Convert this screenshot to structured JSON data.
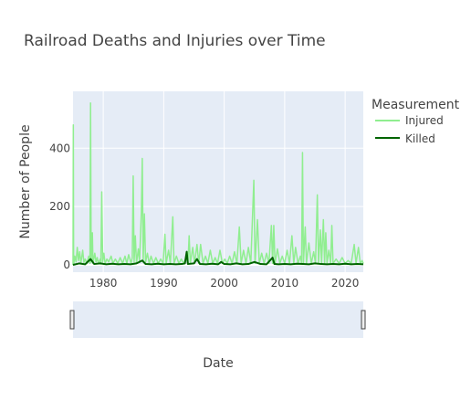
{
  "chart_data": {
    "type": "line",
    "title": "Railroad Deaths and Injuries over Time",
    "xlabel": "Date",
    "ylabel": "Number of People",
    "xlim": [
      1975.0,
      2023.0
    ],
    "ylim": [
      -25,
      595
    ],
    "x_ticks": [
      1980,
      1990,
      2000,
      2010,
      2020
    ],
    "y_ticks": [
      0,
      200,
      400
    ],
    "grid": true,
    "legend": {
      "title": "Measurement",
      "placement": "right"
    },
    "range_slider": true,
    "series": [
      {
        "name": "Injured",
        "color": "#90ee90",
        "points": [
          [
            1975.0,
            0
          ],
          [
            1975.05,
            480
          ],
          [
            1975.1,
            0
          ],
          [
            1975.3,
            30
          ],
          [
            1975.5,
            10
          ],
          [
            1975.7,
            60
          ],
          [
            1975.9,
            15
          ],
          [
            1976.1,
            45
          ],
          [
            1976.3,
            5
          ],
          [
            1976.6,
            50
          ],
          [
            1976.8,
            8
          ],
          [
            1977.0,
            20
          ],
          [
            1977.3,
            5
          ],
          [
            1977.6,
            30
          ],
          [
            1977.8,
            5
          ],
          [
            1977.9,
            555
          ],
          [
            1978.0,
            10
          ],
          [
            1978.2,
            110
          ],
          [
            1978.3,
            5
          ],
          [
            1978.6,
            40
          ],
          [
            1978.8,
            10
          ],
          [
            1979.0,
            25
          ],
          [
            1979.2,
            5
          ],
          [
            1979.5,
            20
          ],
          [
            1979.6,
            3
          ],
          [
            1979.75,
            250
          ],
          [
            1979.9,
            10
          ],
          [
            1980.1,
            40
          ],
          [
            1980.3,
            5
          ],
          [
            1980.6,
            20
          ],
          [
            1980.9,
            10
          ],
          [
            1981.3,
            30
          ],
          [
            1981.6,
            5
          ],
          [
            1982.0,
            20
          ],
          [
            1982.4,
            5
          ],
          [
            1982.8,
            25
          ],
          [
            1983.2,
            5
          ],
          [
            1983.6,
            30
          ],
          [
            1983.9,
            5
          ],
          [
            1984.2,
            35
          ],
          [
            1984.6,
            5
          ],
          [
            1984.8,
            25
          ],
          [
            1984.95,
            305
          ],
          [
            1985.1,
            10
          ],
          [
            1985.3,
            100
          ],
          [
            1985.5,
            5
          ],
          [
            1985.8,
            55
          ],
          [
            1986.0,
            10
          ],
          [
            1986.3,
            180
          ],
          [
            1986.45,
            365
          ],
          [
            1986.6,
            10
          ],
          [
            1986.8,
            175
          ],
          [
            1987.0,
            10
          ],
          [
            1987.3,
            40
          ],
          [
            1987.6,
            5
          ],
          [
            1987.9,
            30
          ],
          [
            1988.3,
            5
          ],
          [
            1988.7,
            25
          ],
          [
            1989.1,
            5
          ],
          [
            1989.5,
            20
          ],
          [
            1989.9,
            5
          ],
          [
            1990.2,
            105
          ],
          [
            1990.4,
            5
          ],
          [
            1990.8,
            50
          ],
          [
            1991.1,
            5
          ],
          [
            1991.5,
            165
          ],
          [
            1991.7,
            5
          ],
          [
            1992.1,
            30
          ],
          [
            1992.5,
            5
          ],
          [
            1992.9,
            20
          ],
          [
            1993.3,
            5
          ],
          [
            1993.7,
            25
          ],
          [
            1994.0,
            5
          ],
          [
            1994.2,
            100
          ],
          [
            1994.4,
            5
          ],
          [
            1994.8,
            60
          ],
          [
            1995.1,
            5
          ],
          [
            1995.5,
            70
          ],
          [
            1995.8,
            5
          ],
          [
            1996.1,
            70
          ],
          [
            1996.5,
            5
          ],
          [
            1996.9,
            30
          ],
          [
            1997.3,
            5
          ],
          [
            1997.7,
            50
          ],
          [
            1998.1,
            5
          ],
          [
            1998.5,
            25
          ],
          [
            1998.9,
            5
          ],
          [
            1999.3,
            50
          ],
          [
            1999.7,
            5
          ],
          [
            2000.1,
            20
          ],
          [
            2000.5,
            5
          ],
          [
            2000.9,
            30
          ],
          [
            2001.3,
            5
          ],
          [
            2001.7,
            45
          ],
          [
            2002.1,
            5
          ],
          [
            2002.5,
            130
          ],
          [
            2002.8,
            5
          ],
          [
            2003.2,
            50
          ],
          [
            2003.6,
            5
          ],
          [
            2004.0,
            60
          ],
          [
            2004.4,
            5
          ],
          [
            2004.9,
            290
          ],
          [
            2005.1,
            5
          ],
          [
            2005.5,
            155
          ],
          [
            2005.8,
            5
          ],
          [
            2006.2,
            40
          ],
          [
            2006.6,
            5
          ],
          [
            2007.0,
            40
          ],
          [
            2007.4,
            5
          ],
          [
            2007.8,
            135
          ],
          [
            2008.0,
            5
          ],
          [
            2008.2,
            135
          ],
          [
            2008.4,
            5
          ],
          [
            2008.8,
            55
          ],
          [
            2009.2,
            5
          ],
          [
            2009.6,
            30
          ],
          [
            2010.0,
            5
          ],
          [
            2010.4,
            50
          ],
          [
            2010.8,
            5
          ],
          [
            2011.2,
            100
          ],
          [
            2011.5,
            5
          ],
          [
            2011.8,
            60
          ],
          [
            2012.2,
            5
          ],
          [
            2012.6,
            30
          ],
          [
            2012.8,
            5
          ],
          [
            2012.95,
            385
          ],
          [
            2013.1,
            5
          ],
          [
            2013.4,
            130
          ],
          [
            2013.6,
            5
          ],
          [
            2014.0,
            75
          ],
          [
            2014.4,
            5
          ],
          [
            2014.8,
            45
          ],
          [
            2015.1,
            5
          ],
          [
            2015.4,
            240
          ],
          [
            2015.6,
            5
          ],
          [
            2015.9,
            120
          ],
          [
            2016.1,
            5
          ],
          [
            2016.4,
            155
          ],
          [
            2016.6,
            5
          ],
          [
            2016.8,
            110
          ],
          [
            2017.0,
            5
          ],
          [
            2017.3,
            50
          ],
          [
            2017.6,
            5
          ],
          [
            2017.8,
            135
          ],
          [
            2018.0,
            5
          ],
          [
            2018.5,
            20
          ],
          [
            2019.0,
            5
          ],
          [
            2019.5,
            25
          ],
          [
            2020.0,
            5
          ],
          [
            2020.5,
            15
          ],
          [
            2021.0,
            5
          ],
          [
            2021.5,
            70
          ],
          [
            2021.8,
            5
          ],
          [
            2022.2,
            60
          ],
          [
            2022.5,
            5
          ],
          [
            2022.8,
            15
          ],
          [
            2023.0,
            5
          ]
        ]
      },
      {
        "name": "Killed",
        "color": "#006400",
        "points": [
          [
            1975.0,
            0
          ],
          [
            1976.0,
            5
          ],
          [
            1977.0,
            2
          ],
          [
            1977.9,
            20
          ],
          [
            1978.5,
            3
          ],
          [
            1979.5,
            5
          ],
          [
            1980.5,
            2
          ],
          [
            1981.5,
            4
          ],
          [
            1982.5,
            2
          ],
          [
            1983.5,
            3
          ],
          [
            1984.5,
            2
          ],
          [
            1985.5,
            5
          ],
          [
            1986.45,
            15
          ],
          [
            1987.0,
            3
          ],
          [
            1988.0,
            2
          ],
          [
            1989.0,
            4
          ],
          [
            1990.0,
            2
          ],
          [
            1991.0,
            3
          ],
          [
            1992.0,
            2
          ],
          [
            1993.0,
            3
          ],
          [
            1993.5,
            5
          ],
          [
            1993.8,
            45
          ],
          [
            1994.0,
            3
          ],
          [
            1995.0,
            5
          ],
          [
            1995.5,
            20
          ],
          [
            1996.0,
            3
          ],
          [
            1997.0,
            2
          ],
          [
            1998.0,
            4
          ],
          [
            1999.0,
            2
          ],
          [
            1999.5,
            10
          ],
          [
            2000.0,
            3
          ],
          [
            2001.0,
            2
          ],
          [
            2002.0,
            5
          ],
          [
            2003.0,
            2
          ],
          [
            2004.0,
            3
          ],
          [
            2005.0,
            10
          ],
          [
            2006.0,
            3
          ],
          [
            2007.0,
            2
          ],
          [
            2008.0,
            25
          ],
          [
            2008.3,
            3
          ],
          [
            2009.0,
            2
          ],
          [
            2010.0,
            3
          ],
          [
            2011.0,
            2
          ],
          [
            2012.0,
            4
          ],
          [
            2013.0,
            3
          ],
          [
            2014.0,
            2
          ],
          [
            2015.0,
            5
          ],
          [
            2016.0,
            3
          ],
          [
            2017.0,
            2
          ],
          [
            2018.0,
            3
          ],
          [
            2019.0,
            2
          ],
          [
            2020.0,
            4
          ],
          [
            2021.0,
            2
          ],
          [
            2022.0,
            3
          ],
          [
            2023.0,
            2
          ]
        ]
      }
    ]
  }
}
